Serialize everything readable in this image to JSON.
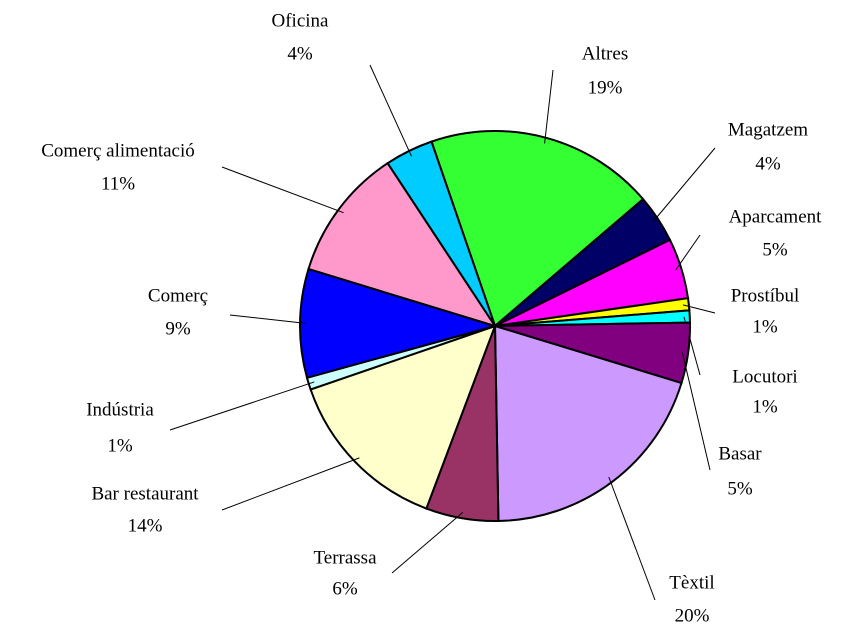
{
  "chart_data": {
    "type": "pie",
    "categories": [
      "Altres",
      "Magatzem",
      "Aparcament",
      "Prostíbul",
      "Locutori",
      "Basar",
      "Tèxtil",
      "Terrassa",
      "Bar restaurant",
      "Indústria",
      "Comerç",
      "Comerç alimentació",
      "Oficina"
    ],
    "values": [
      19,
      4,
      5,
      1,
      1,
      5,
      20,
      6,
      14,
      1,
      9,
      11,
      4
    ],
    "value_labels": [
      "19%",
      "4%",
      "5%",
      "1%",
      "1%",
      "5%",
      "20%",
      "6%",
      "14%",
      "1%",
      "9%",
      "11%",
      "4%"
    ],
    "colors": [
      "#33ff33",
      "#000066",
      "#ff00ff",
      "#ffff00",
      "#00ffff",
      "#800080",
      "#cc99ff",
      "#993366",
      "#ffffcc",
      "#ccffff",
      "#0000ff",
      "#ff99cc",
      "#00ccff"
    ]
  }
}
